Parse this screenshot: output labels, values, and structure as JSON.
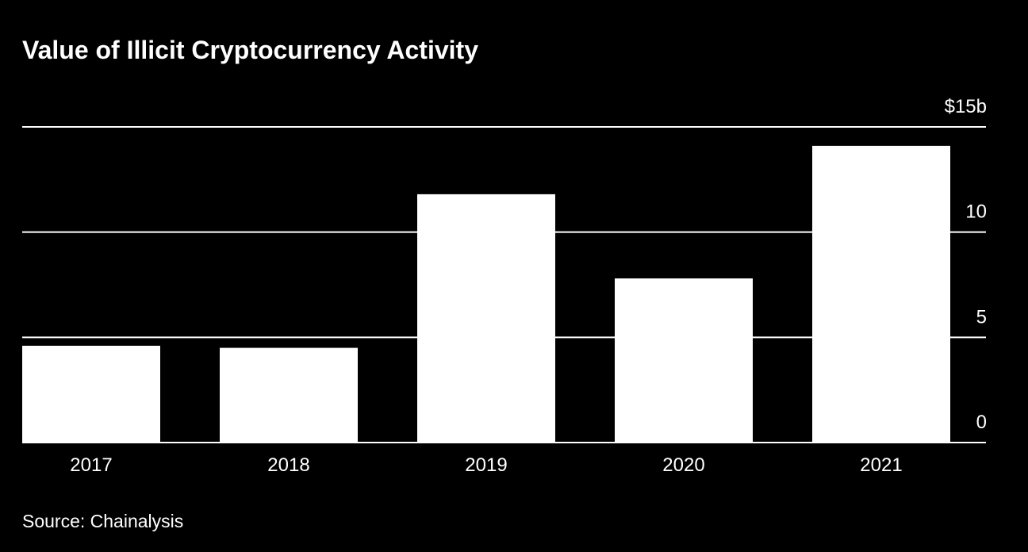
{
  "chart_data": {
    "type": "bar",
    "title": "Value of Illicit Cryptocurrency Activity",
    "categories": [
      "2017",
      "2018",
      "2019",
      "2020",
      "2021"
    ],
    "values": [
      4.6,
      4.5,
      11.8,
      7.8,
      14.1
    ],
    "color": "#ffffff",
    "ylim": [
      0,
      15
    ],
    "yticks": [
      0,
      5,
      10,
      {
        "value": 15,
        "label": "$15b"
      }
    ],
    "grid": true,
    "source": "Source: Chainalysis"
  }
}
